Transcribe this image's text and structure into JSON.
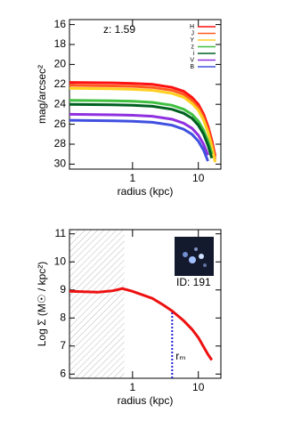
{
  "chart_data": [
    {
      "type": "line",
      "xlabel": "radius (kpc)",
      "ylabel": "mag/arcsec²",
      "annotation": "z: 1.59",
      "xscale": "log",
      "xlim": [
        0.11,
        22
      ],
      "xticks": [
        1,
        10
      ],
      "ylim": [
        30.5,
        15.5
      ],
      "yticks": [
        16,
        18,
        20,
        22,
        24,
        26,
        28,
        30
      ],
      "legend": "upper right",
      "x": [
        0.11,
        0.5,
        1,
        2,
        4,
        6,
        8,
        10,
        12,
        14,
        16,
        18
      ],
      "series": [
        {
          "name": "H",
          "color": "#ff1010",
          "values": [
            21.8,
            21.85,
            21.9,
            22.0,
            22.3,
            22.7,
            23.3,
            24.0,
            25.0,
            26.2,
            27.6,
            29.2
          ]
        },
        {
          "name": "J",
          "color": "#ff5a20",
          "values": [
            22.1,
            22.15,
            22.2,
            22.3,
            22.6,
            23.0,
            23.6,
            24.3,
            25.3,
            26.5,
            27.9,
            29.5
          ]
        },
        {
          "name": "Y",
          "color": "#ffd020",
          "values": [
            22.4,
            22.45,
            22.5,
            22.6,
            22.9,
            23.3,
            23.9,
            24.6,
            25.6,
            26.8,
            28.2,
            29.8
          ]
        },
        {
          "name": "z",
          "color": "#40c040",
          "values": [
            23.6,
            23.65,
            23.7,
            23.8,
            24.1,
            24.5,
            25.0,
            25.7,
            26.6,
            27.7,
            29.0,
            null
          ]
        },
        {
          "name": "i",
          "color": "#006020",
          "values": [
            24.0,
            24.05,
            24.1,
            24.2,
            24.5,
            24.9,
            25.4,
            26.1,
            27.0,
            28.1,
            29.4,
            null
          ]
        },
        {
          "name": "V",
          "color": "#9030e0",
          "values": [
            25.0,
            25.05,
            25.1,
            25.2,
            25.5,
            25.9,
            26.4,
            27.1,
            28.0,
            29.1,
            null,
            null
          ]
        },
        {
          "name": "B",
          "color": "#4050e0",
          "values": [
            25.6,
            25.65,
            25.7,
            25.8,
            26.1,
            26.5,
            27.0,
            27.7,
            28.6,
            29.7,
            null,
            null
          ]
        }
      ]
    },
    {
      "type": "line",
      "xlabel": "radius (kpc)",
      "ylabel": "Log Σ (M☉ / kpc²)",
      "annotation": "ID: 191",
      "xscale": "log",
      "xlim": [
        0.11,
        22
      ],
      "xticks": [
        1,
        10
      ],
      "ylim": [
        5.85,
        11.15
      ],
      "yticks": [
        6,
        7,
        8,
        9,
        10,
        11
      ],
      "shade_xlim": [
        0.11,
        0.75
      ],
      "vline": {
        "x": 4,
        "ymax": 8.2,
        "label": "rₘ",
        "color": "#2020d0"
      },
      "x": [
        0.11,
        0.3,
        0.5,
        0.7,
        1,
        2,
        3,
        4,
        6,
        8,
        10,
        14,
        16
      ],
      "series": [
        {
          "color": "#ee1010",
          "values": [
            8.95,
            8.92,
            8.97,
            9.05,
            8.95,
            8.7,
            8.45,
            8.25,
            7.9,
            7.6,
            7.3,
            6.7,
            6.5
          ]
        }
      ]
    }
  ]
}
